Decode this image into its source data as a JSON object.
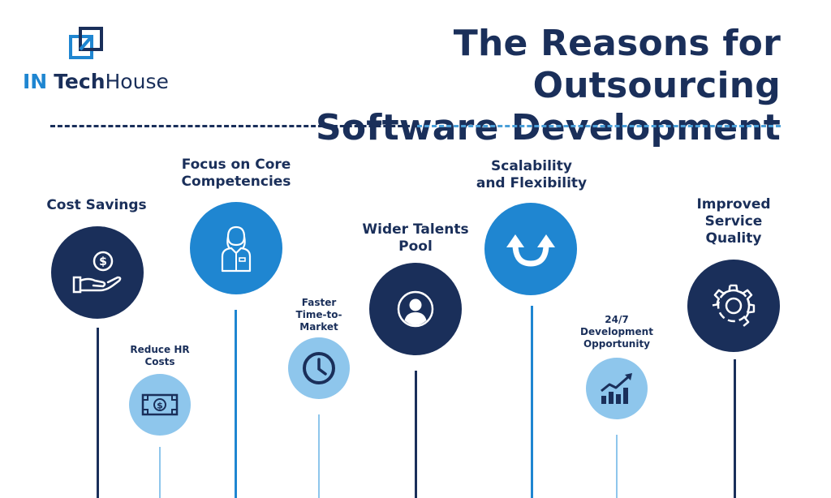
{
  "logo": {
    "part1": "IN",
    "part2": "Tech",
    "part3": "House",
    "colors": {
      "accent": "#1f86d1",
      "dark": "#1a2f5a"
    }
  },
  "title": {
    "line1": "The Reasons for Outsourcing",
    "line2": "Software Development"
  },
  "colors": {
    "navy": "#1a2f5a",
    "blue": "#1f86d1",
    "light_blue": "#8ec6ec"
  },
  "reasons": [
    {
      "line1": "Cost Savings",
      "line2": "",
      "icon": "hand-dollar-icon"
    },
    {
      "line1": "Reduce HR",
      "line2": "Costs",
      "icon": "banknote-icon"
    },
    {
      "line1": "Focus on Core",
      "line2": "Competencies",
      "icon": "person-icon"
    },
    {
      "line1": "Faster",
      "line2": "Time-to-",
      "line3": "Market",
      "icon": "clock-icon"
    },
    {
      "line1": "Wider Talents",
      "line2": "Pool",
      "icon": "user-circle-icon"
    },
    {
      "line1": "Scalability",
      "line2": "and Flexibility",
      "icon": "double-arrow-up-icon"
    },
    {
      "line1": "24/7",
      "line2": "Development",
      "line3": "Opportunity",
      "icon": "growth-chart-icon"
    },
    {
      "line1": "Improved",
      "line2": "Service",
      "line3": "Quality",
      "icon": "gear-icon"
    }
  ]
}
